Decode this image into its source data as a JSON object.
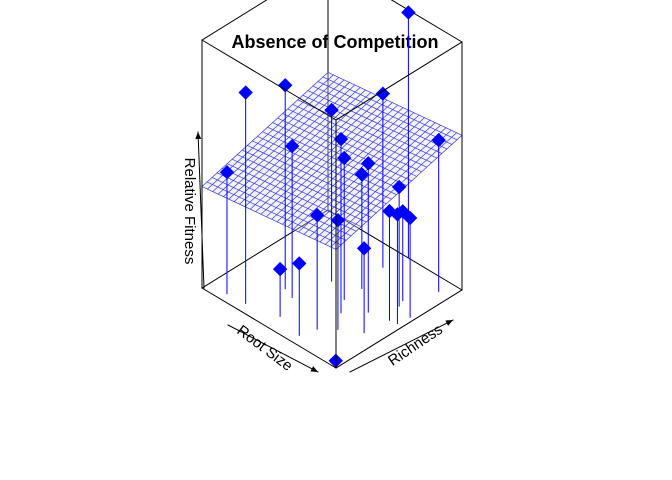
{
  "chart_data": {
    "type": "scatter3d",
    "title": "Absence of Competition",
    "xlabel": "Root Size",
    "ylabel": "Richness",
    "zlabel": "Relative Fitness",
    "xlim": [
      0,
      1
    ],
    "ylim": [
      0,
      1
    ],
    "zlim": [
      0,
      1
    ],
    "box": true,
    "ticks": false,
    "regression_plane": {
      "intercept": 0.478,
      "slope_root_size": -0.069,
      "slope_richness": 0.146,
      "grid_lines": 25
    },
    "points": [
      {
        "root_size": 0.03,
        "richness": 0.03,
        "relative_fitness": 0.01
      },
      {
        "root_size": 0.34,
        "richness": 0.07,
        "relative_fitness": 0.29
      },
      {
        "root_size": 0.53,
        "richness": 0.12,
        "relative_fitness": 0.19
      },
      {
        "root_size": 0.31,
        "richness": 0.18,
        "relative_fitness": 0.46
      },
      {
        "root_size": 0.11,
        "richness": 0.34,
        "relative_fitness": 0.34
      },
      {
        "root_size": 0.23,
        "richness": 0.26,
        "relative_fitness": 0.44
      },
      {
        "root_size": 0.09,
        "richness": 0.52,
        "relative_fitness": 0.44
      },
      {
        "root_size": 0.39,
        "richness": 0.48,
        "relative_fitness": 0.57
      },
      {
        "root_size": 0.03,
        "richness": 0.62,
        "relative_fitness": 0.4
      },
      {
        "root_size": 0.04,
        "richness": 0.53,
        "relative_fitness": 0.44
      },
      {
        "root_size": 0.14,
        "richness": 0.65,
        "relative_fitness": 0.48
      },
      {
        "root_size": 0.16,
        "richness": 0.7,
        "relative_fitness": 0.36
      },
      {
        "root_size": 0.32,
        "richness": 0.38,
        "relative_fitness": 0.7
      },
      {
        "root_size": 0.22,
        "richness": 0.49,
        "relative_fitness": 0.6
      },
      {
        "root_size": 0.39,
        "richness": 0.62,
        "relative_fitness": 0.46
      },
      {
        "root_size": 0.6,
        "richness": 0.29,
        "relative_fitness": 0.61
      },
      {
        "root_size": 0.68,
        "richness": 0.32,
        "relative_fitness": 0.82
      },
      {
        "root_size": 0.74,
        "richness": 0.07,
        "relative_fitness": 0.85
      },
      {
        "root_size": 0.87,
        "richness": 0.06,
        "relative_fitness": 0.49
      },
      {
        "root_size": 0.55,
        "richness": 0.55,
        "relative_fitness": 0.69
      },
      {
        "root_size": 0.44,
        "richness": 0.84,
        "relative_fitness": 0.7
      },
      {
        "root_size": 0.4,
        "richness": 1.0,
        "relative_fitness": 0.99
      },
      {
        "root_size": 0.08,
        "richness": 0.9,
        "relative_fitness": 0.61
      }
    ],
    "colors": {
      "points": "#0000ff",
      "plane": "#3b3bd6",
      "box": "#000000"
    }
  }
}
